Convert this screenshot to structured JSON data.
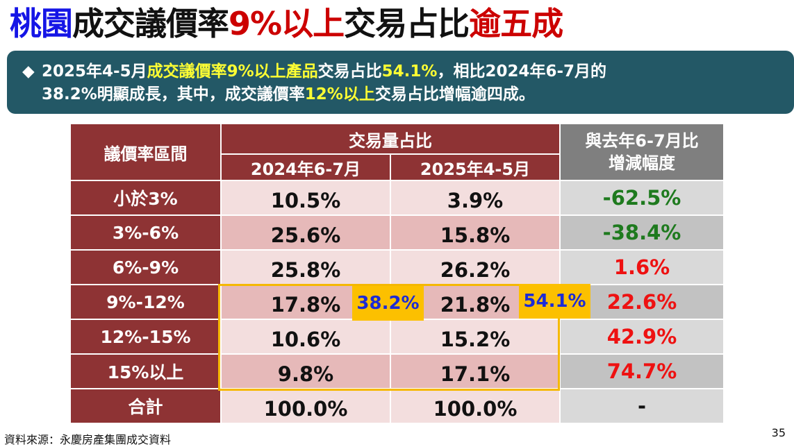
{
  "title": {
    "part1": "桃園",
    "part2": "成交議價率",
    "part3": "9%以上",
    "part4": "交易占比",
    "part5": "逾五成"
  },
  "summary": {
    "bullet": "◆",
    "l1_a": "2025年4-5月",
    "l1_b": "成交議價率9%以上產品",
    "l1_c": "交易占比",
    "l1_d": "54.1%",
    "l1_e": "，相比2024年6-7月的",
    "l2_a": "38.2%明顯成長，其中，成交議價率",
    "l2_b": "12%以上",
    "l2_c": "交易占比增幅逾四成。"
  },
  "table": {
    "col_label": "議價率區間",
    "group_header": "交易量占比",
    "col_2024": "2024年6-7月",
    "col_2025": "2025年4-5月",
    "col_change_l1": "與去年6-7月比",
    "col_change_l2": "增減幅度",
    "rows": [
      {
        "label": "小於3%",
        "v2024": "10.5%",
        "v2025": "3.9%",
        "change": "-62.5%"
      },
      {
        "label": "3%-6%",
        "v2024": "25.6%",
        "v2025": "15.8%",
        "change": "-38.4%"
      },
      {
        "label": "6%-9%",
        "v2024": "25.8%",
        "v2025": "26.2%",
        "change": "1.6%"
      },
      {
        "label": "9%-12%",
        "v2024": "17.8%",
        "v2025": "21.8%",
        "change": "22.6%"
      },
      {
        "label": "12%-15%",
        "v2024": "10.6%",
        "v2025": "15.2%",
        "change": "42.9%"
      },
      {
        "label": "15%以上",
        "v2024": "9.8%",
        "v2025": "17.1%",
        "change": "74.7%"
      },
      {
        "label": "合計",
        "v2024": "100.0%",
        "v2025": "100.0%",
        "change": "-"
      }
    ]
  },
  "callouts": {
    "sum_2024": "38.2%",
    "sum_2025": "54.1%"
  },
  "footer": {
    "source": "資料來源：永慶房產集團成交資料",
    "page": "35"
  },
  "colors": {
    "title_blue": "#1515e6",
    "title_red": "#cc0000",
    "summary_bg": "#235866",
    "highlight_yellow": "#ffff33",
    "header_maroon": "#8e3334",
    "negative_green": "#1e7a1e",
    "positive_red": "#ee1111",
    "callout_bg": "#fcc000"
  }
}
